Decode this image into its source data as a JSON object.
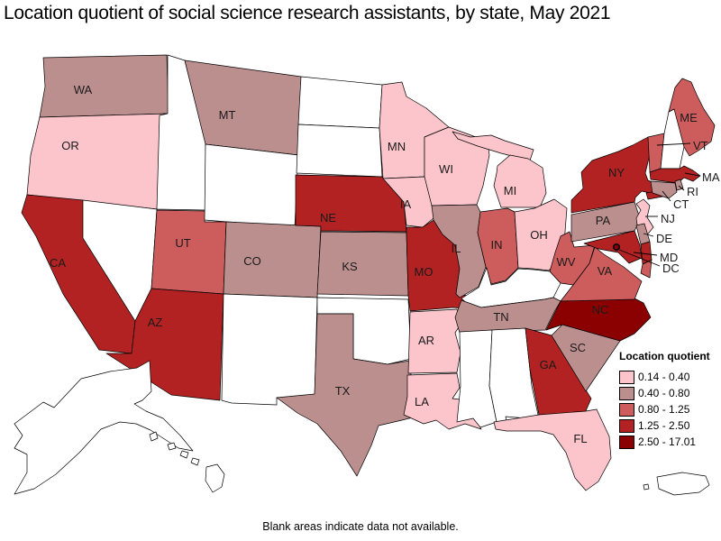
{
  "title": "Location quotient of social science research assistants, by state, May 2021",
  "footnote": "Blank areas indicate data not available.",
  "legend": {
    "title": "Location quotient",
    "classes": [
      {
        "range": "0.14 - 0.40",
        "color": "#fbc5cb"
      },
      {
        "range": "0.40 - 0.80",
        "color": "#bc8f8f"
      },
      {
        "range": "0.80 - 1.25",
        "color": "#cd5c5c"
      },
      {
        "range": "1.25 - 2.50",
        "color": "#b22222"
      },
      {
        "range": "2.50 - 17.01",
        "color": "#8b0000"
      }
    ]
  },
  "map": {
    "no_data_fill": "#ffffff",
    "border_color": "#000000",
    "states": [
      {
        "code": "WA",
        "label": "WA",
        "lq_class": "0.40 - 0.80"
      },
      {
        "code": "OR",
        "label": "OR",
        "lq_class": "0.14 - 0.40"
      },
      {
        "code": "CA",
        "label": "CA",
        "lq_class": "1.25 - 2.50"
      },
      {
        "code": "ID",
        "lq_class": null
      },
      {
        "code": "NV",
        "lq_class": null
      },
      {
        "code": "UT",
        "label": "UT",
        "lq_class": "0.80 - 1.25"
      },
      {
        "code": "AZ",
        "label": "AZ",
        "lq_class": "1.25 - 2.50"
      },
      {
        "code": "MT",
        "label": "MT",
        "lq_class": "0.40 - 0.80"
      },
      {
        "code": "WY",
        "lq_class": null
      },
      {
        "code": "CO",
        "label": "CO",
        "lq_class": "0.40 - 0.80"
      },
      {
        "code": "NM",
        "lq_class": null
      },
      {
        "code": "ND",
        "lq_class": null
      },
      {
        "code": "SD",
        "lq_class": null
      },
      {
        "code": "NE",
        "label": "NE",
        "lq_class": "1.25 - 2.50"
      },
      {
        "code": "KS",
        "label": "KS",
        "lq_class": "0.40 - 0.80"
      },
      {
        "code": "OK",
        "lq_class": null
      },
      {
        "code": "TX",
        "label": "TX",
        "lq_class": "0.40 - 0.80"
      },
      {
        "code": "MN",
        "label": "MN",
        "lq_class": "0.14 - 0.40"
      },
      {
        "code": "IA",
        "label": "IA",
        "lq_class": "0.14 - 0.40"
      },
      {
        "code": "MO",
        "label": "MO",
        "lq_class": "1.25 - 2.50"
      },
      {
        "code": "AR",
        "label": "AR",
        "lq_class": "0.14 - 0.40"
      },
      {
        "code": "LA",
        "label": "LA",
        "lq_class": "0.14 - 0.40"
      },
      {
        "code": "WI",
        "label": "WI",
        "lq_class": "0.14 - 0.40"
      },
      {
        "code": "MI",
        "label": "MI",
        "lq_class": "0.14 - 0.40"
      },
      {
        "code": "IL",
        "label": "IL",
        "lq_class": "0.40 - 0.80"
      },
      {
        "code": "IN",
        "label": "IN",
        "lq_class": "0.80 - 1.25"
      },
      {
        "code": "OH",
        "label": "OH",
        "lq_class": "0.14 - 0.40"
      },
      {
        "code": "KY",
        "lq_class": null
      },
      {
        "code": "TN",
        "label": "TN",
        "lq_class": "0.40 - 0.80"
      },
      {
        "code": "MS",
        "lq_class": null
      },
      {
        "code": "AL",
        "lq_class": null
      },
      {
        "code": "GA",
        "label": "GA",
        "lq_class": "1.25 - 2.50"
      },
      {
        "code": "FL",
        "label": "FL",
        "lq_class": "0.14 - 0.40"
      },
      {
        "code": "SC",
        "label": "SC",
        "lq_class": "0.40 - 0.80"
      },
      {
        "code": "NC",
        "label": "NC",
        "lq_class": "2.50 - 17.01"
      },
      {
        "code": "VA",
        "label": "VA",
        "lq_class": "0.80 - 1.25"
      },
      {
        "code": "WV",
        "label": "WV",
        "lq_class": "0.80 - 1.25"
      },
      {
        "code": "PA",
        "label": "PA",
        "lq_class": "0.40 - 0.80"
      },
      {
        "code": "NY",
        "label": "NY",
        "lq_class": "1.25 - 2.50"
      },
      {
        "code": "VT",
        "label": "VT",
        "lq_class": "0.80 - 1.25"
      },
      {
        "code": "NH",
        "lq_class": null
      },
      {
        "code": "ME",
        "label": "ME",
        "lq_class": "0.80 - 1.25"
      },
      {
        "code": "MA",
        "label": "MA",
        "lq_class": "1.25 - 2.50"
      },
      {
        "code": "RI",
        "label": "RI",
        "lq_class": "0.40 - 0.80"
      },
      {
        "code": "CT",
        "label": "CT",
        "lq_class": "0.40 - 0.80"
      },
      {
        "code": "NJ",
        "label": "NJ",
        "lq_class": "0.14 - 0.40"
      },
      {
        "code": "DE",
        "label": "DE",
        "lq_class": "0.40 - 0.80"
      },
      {
        "code": "MD",
        "label": "MD",
        "lq_class": "1.25 - 2.50"
      },
      {
        "code": "DC",
        "label": "DC",
        "lq_class": "2.50 - 17.01"
      },
      {
        "code": "AK",
        "lq_class": null
      },
      {
        "code": "HI",
        "lq_class": null
      },
      {
        "code": "PR",
        "lq_class": null
      }
    ]
  }
}
